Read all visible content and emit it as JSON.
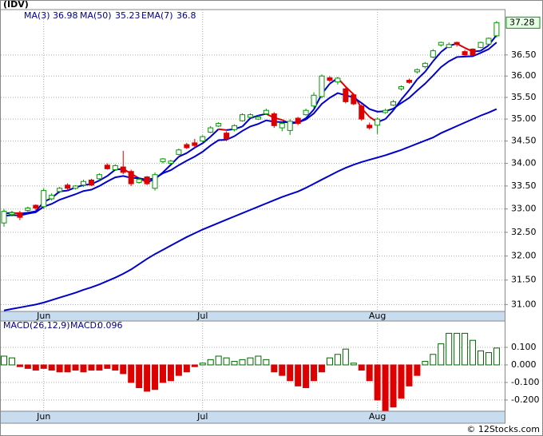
{
  "footer": "© 12Stocks.com",
  "chart_data": [
    {
      "type": "candlestick",
      "title": "(IDV)",
      "categories": [
        null,
        null,
        null,
        null,
        null,
        "Jun",
        null,
        null,
        null,
        null,
        null,
        null,
        null,
        null,
        null,
        null,
        null,
        null,
        null,
        null,
        null,
        null,
        null,
        null,
        null,
        "Jul",
        null,
        null,
        null,
        null,
        null,
        null,
        null,
        null,
        null,
        null,
        null,
        null,
        null,
        null,
        null,
        null,
        null,
        null,
        null,
        null,
        null,
        "Aug",
        null,
        null,
        null,
        null,
        null,
        null,
        null,
        null,
        null,
        null,
        null,
        null,
        null,
        null,
        null
      ],
      "open": [
        32.7,
        32.88,
        32.92,
        32.97,
        33.08,
        33.05,
        33.22,
        33.38,
        33.52,
        33.45,
        33.52,
        33.63,
        33.66,
        33.96,
        33.86,
        33.92,
        33.82,
        33.58,
        33.7,
        33.45,
        34.04,
        34.0,
        34.2,
        34.42,
        34.46,
        34.5,
        34.7,
        34.84,
        34.68,
        34.76,
        34.96,
        35.04,
        35.0,
        35.12,
        35.12,
        34.8,
        34.74,
        35.02,
        35.1,
        35.3,
        35.52,
        35.96,
        35.86,
        35.7,
        35.56,
        35.3,
        34.86,
        34.86,
        35.15,
        35.32,
        35.7,
        35.9,
        36.1,
        36.22,
        36.45,
        36.74,
        36.68,
        36.8,
        36.58,
        36.64,
        36.68,
        36.76,
        36.96
      ],
      "high": [
        33.0,
        32.96,
        32.96,
        33.05,
        33.1,
        33.45,
        33.34,
        33.48,
        33.56,
        33.52,
        33.64,
        33.66,
        33.78,
        34.0,
        33.98,
        34.28,
        33.86,
        33.68,
        33.72,
        33.8,
        34.12,
        34.08,
        34.33,
        34.46,
        34.55,
        34.63,
        34.84,
        34.93,
        34.72,
        34.88,
        35.13,
        35.13,
        35.08,
        35.24,
        35.16,
        34.94,
        35.0,
        35.05,
        35.24,
        35.62,
        36.04,
        36.0,
        35.98,
        35.74,
        35.6,
        35.34,
        34.92,
        35.04,
        35.24,
        35.44,
        35.78,
        35.94,
        36.18,
        36.33,
        36.64,
        36.82,
        36.8,
        36.82,
        36.62,
        36.66,
        36.82,
        36.92,
        37.32
      ],
      "low": [
        32.62,
        32.84,
        32.76,
        32.94,
        32.98,
        33.0,
        33.18,
        33.34,
        33.42,
        33.42,
        33.48,
        33.5,
        33.62,
        33.86,
        33.84,
        33.76,
        33.5,
        33.55,
        33.52,
        33.4,
        34.0,
        33.98,
        34.18,
        34.32,
        34.36,
        34.48,
        34.68,
        34.82,
        34.5,
        34.72,
        34.94,
        35.02,
        34.98,
        35.1,
        34.8,
        34.72,
        34.64,
        34.86,
        35.08,
        35.26,
        35.48,
        35.86,
        35.8,
        35.36,
        35.32,
        34.96,
        34.76,
        34.66,
        35.12,
        35.3,
        35.66,
        35.82,
        36.06,
        36.18,
        36.42,
        36.7,
        36.66,
        36.7,
        36.48,
        36.48,
        36.66,
        36.74,
        36.92
      ],
      "close": [
        32.95,
        32.92,
        32.82,
        33.02,
        33.02,
        33.4,
        33.3,
        33.45,
        33.45,
        33.5,
        33.6,
        33.52,
        33.75,
        33.88,
        33.95,
        33.8,
        33.55,
        33.65,
        33.55,
        33.75,
        34.1,
        34.05,
        34.3,
        34.35,
        34.4,
        34.6,
        34.8,
        34.9,
        34.55,
        34.85,
        35.1,
        35.1,
        35.05,
        35.2,
        34.85,
        34.9,
        34.95,
        34.9,
        35.2,
        35.55,
        36.0,
        35.9,
        35.95,
        35.4,
        35.35,
        35.0,
        34.8,
        35.0,
        35.2,
        35.4,
        35.75,
        35.85,
        36.15,
        36.3,
        36.6,
        36.8,
        36.75,
        36.75,
        36.5,
        36.5,
        36.8,
        36.9,
        37.28
      ],
      "up_color": "#009900",
      "down_color": "#dd0000",
      "series": [
        {
          "name": "MA(3)",
          "color": "#0000cc",
          "down_color": "#dd0000",
          "values": [
            32.9,
            32.92,
            32.9,
            32.92,
            32.95,
            33.15,
            33.24,
            33.38,
            33.4,
            33.47,
            33.52,
            33.54,
            33.62,
            33.72,
            33.86,
            33.88,
            33.77,
            33.67,
            33.58,
            33.65,
            33.8,
            33.97,
            34.15,
            34.23,
            34.35,
            34.45,
            34.6,
            34.77,
            34.75,
            34.77,
            34.83,
            35.02,
            35.08,
            35.12,
            35.03,
            34.98,
            34.9,
            34.92,
            35.02,
            35.22,
            35.58,
            35.82,
            35.95,
            35.75,
            35.57,
            35.25,
            35.05,
            34.93,
            35.0,
            35.2,
            35.45,
            35.67,
            35.92,
            36.1,
            36.35,
            36.57,
            36.72,
            36.77,
            36.67,
            36.58,
            36.6,
            36.73,
            36.98
          ]
        },
        {
          "name": "MA(50)",
          "color": "#0000cc",
          "values": [
            30.88,
            30.91,
            30.94,
            30.97,
            31.0,
            31.04,
            31.09,
            31.14,
            31.19,
            31.24,
            31.3,
            31.35,
            31.41,
            31.48,
            31.55,
            31.63,
            31.72,
            31.83,
            31.94,
            32.04,
            32.13,
            32.22,
            32.31,
            32.4,
            32.48,
            32.56,
            32.63,
            32.7,
            32.77,
            32.84,
            32.91,
            32.98,
            33.05,
            33.12,
            33.19,
            33.26,
            33.32,
            33.38,
            33.46,
            33.55,
            33.64,
            33.73,
            33.82,
            33.9,
            33.97,
            34.03,
            34.08,
            34.13,
            34.18,
            34.24,
            34.3,
            34.37,
            34.44,
            34.51,
            34.58,
            34.68,
            34.76,
            34.84,
            34.92,
            35.0,
            35.08,
            35.15,
            35.23
          ]
        },
        {
          "name": "EMA(7)",
          "color": "#0000cc",
          "values": [
            32.85,
            32.87,
            32.86,
            32.9,
            32.93,
            33.05,
            33.11,
            33.2,
            33.26,
            33.32,
            33.39,
            33.42,
            33.5,
            33.6,
            33.69,
            33.72,
            33.68,
            33.67,
            33.64,
            33.67,
            33.78,
            33.85,
            33.96,
            34.06,
            34.15,
            34.26,
            34.4,
            34.52,
            34.53,
            34.61,
            34.73,
            34.83,
            34.89,
            34.97,
            34.94,
            34.93,
            34.93,
            34.92,
            34.99,
            35.13,
            35.35,
            35.49,
            35.6,
            35.55,
            35.5,
            35.37,
            35.23,
            35.17,
            35.18,
            35.24,
            35.37,
            35.49,
            35.66,
            35.82,
            36.01,
            36.21,
            36.35,
            36.45,
            36.46,
            36.47,
            36.55,
            36.64,
            36.8
          ]
        }
      ],
      "log_scale": true,
      "grid": true,
      "ylim": [
        30.86,
        37.6
      ],
      "yticks": [
        {
          "value": 31,
          "label": "31.00"
        },
        {
          "value": 31.5,
          "label": "31.50"
        },
        {
          "value": 32,
          "label": "32.00"
        },
        {
          "value": 32.5,
          "label": "32.50"
        },
        {
          "value": 33,
          "label": "33.00"
        },
        {
          "value": 33.5,
          "label": "33.50"
        },
        {
          "value": 34,
          "label": "34.00"
        },
        {
          "value": 34.5,
          "label": "34.50"
        },
        {
          "value": 35,
          "label": "35.00"
        },
        {
          "value": 35.5,
          "label": "35.50"
        },
        {
          "value": 36,
          "label": "36.00"
        },
        {
          "value": 36.5,
          "label": "36.50"
        }
      ]
    },
    {
      "type": "bar",
      "title": "MACD(26,12,9)",
      "legend_label": "MACD:",
      "categories": [
        null,
        null,
        null,
        null,
        null,
        "Jun",
        null,
        null,
        null,
        null,
        null,
        null,
        null,
        null,
        null,
        null,
        null,
        null,
        null,
        null,
        null,
        null,
        null,
        null,
        null,
        "Jul",
        null,
        null,
        null,
        null,
        null,
        null,
        null,
        null,
        null,
        null,
        null,
        null,
        null,
        null,
        null,
        null,
        null,
        null,
        null,
        null,
        null,
        "Aug",
        null,
        null,
        null,
        null,
        null,
        null,
        null,
        null,
        null,
        null,
        null,
        null,
        null,
        null,
        null
      ],
      "values": [
        0.05,
        0.04,
        -0.01,
        -0.02,
        -0.03,
        -0.02,
        -0.03,
        -0.04,
        -0.04,
        -0.03,
        -0.04,
        -0.03,
        -0.03,
        -0.02,
        -0.03,
        -0.05,
        -0.1,
        -0.13,
        -0.15,
        -0.14,
        -0.1,
        -0.09,
        -0.06,
        -0.04,
        -0.01,
        0.01,
        0.03,
        0.05,
        0.04,
        0.02,
        0.03,
        0.04,
        0.05,
        0.03,
        -0.04,
        -0.06,
        -0.09,
        -0.12,
        -0.13,
        -0.09,
        -0.04,
        0.04,
        0.06,
        0.09,
        0.01,
        -0.03,
        -0.09,
        -0.2,
        -0.26,
        -0.24,
        -0.19,
        -0.12,
        -0.06,
        0.02,
        0.06,
        0.12,
        0.18,
        0.18,
        0.18,
        0.14,
        0.08,
        0.07,
        0.096
      ],
      "up_color": "#006600",
      "down_color": "#dd0000",
      "grid": true,
      "ylim": [
        -0.264,
        0.25
      ],
      "yticks": [
        {
          "value": 0.1,
          "label": "0.100"
        },
        {
          "value": 0,
          "label": "0.000"
        },
        {
          "value": -0.1,
          "label": "-0.100"
        },
        {
          "value": -0.2,
          "label": "-0.200"
        }
      ]
    }
  ]
}
